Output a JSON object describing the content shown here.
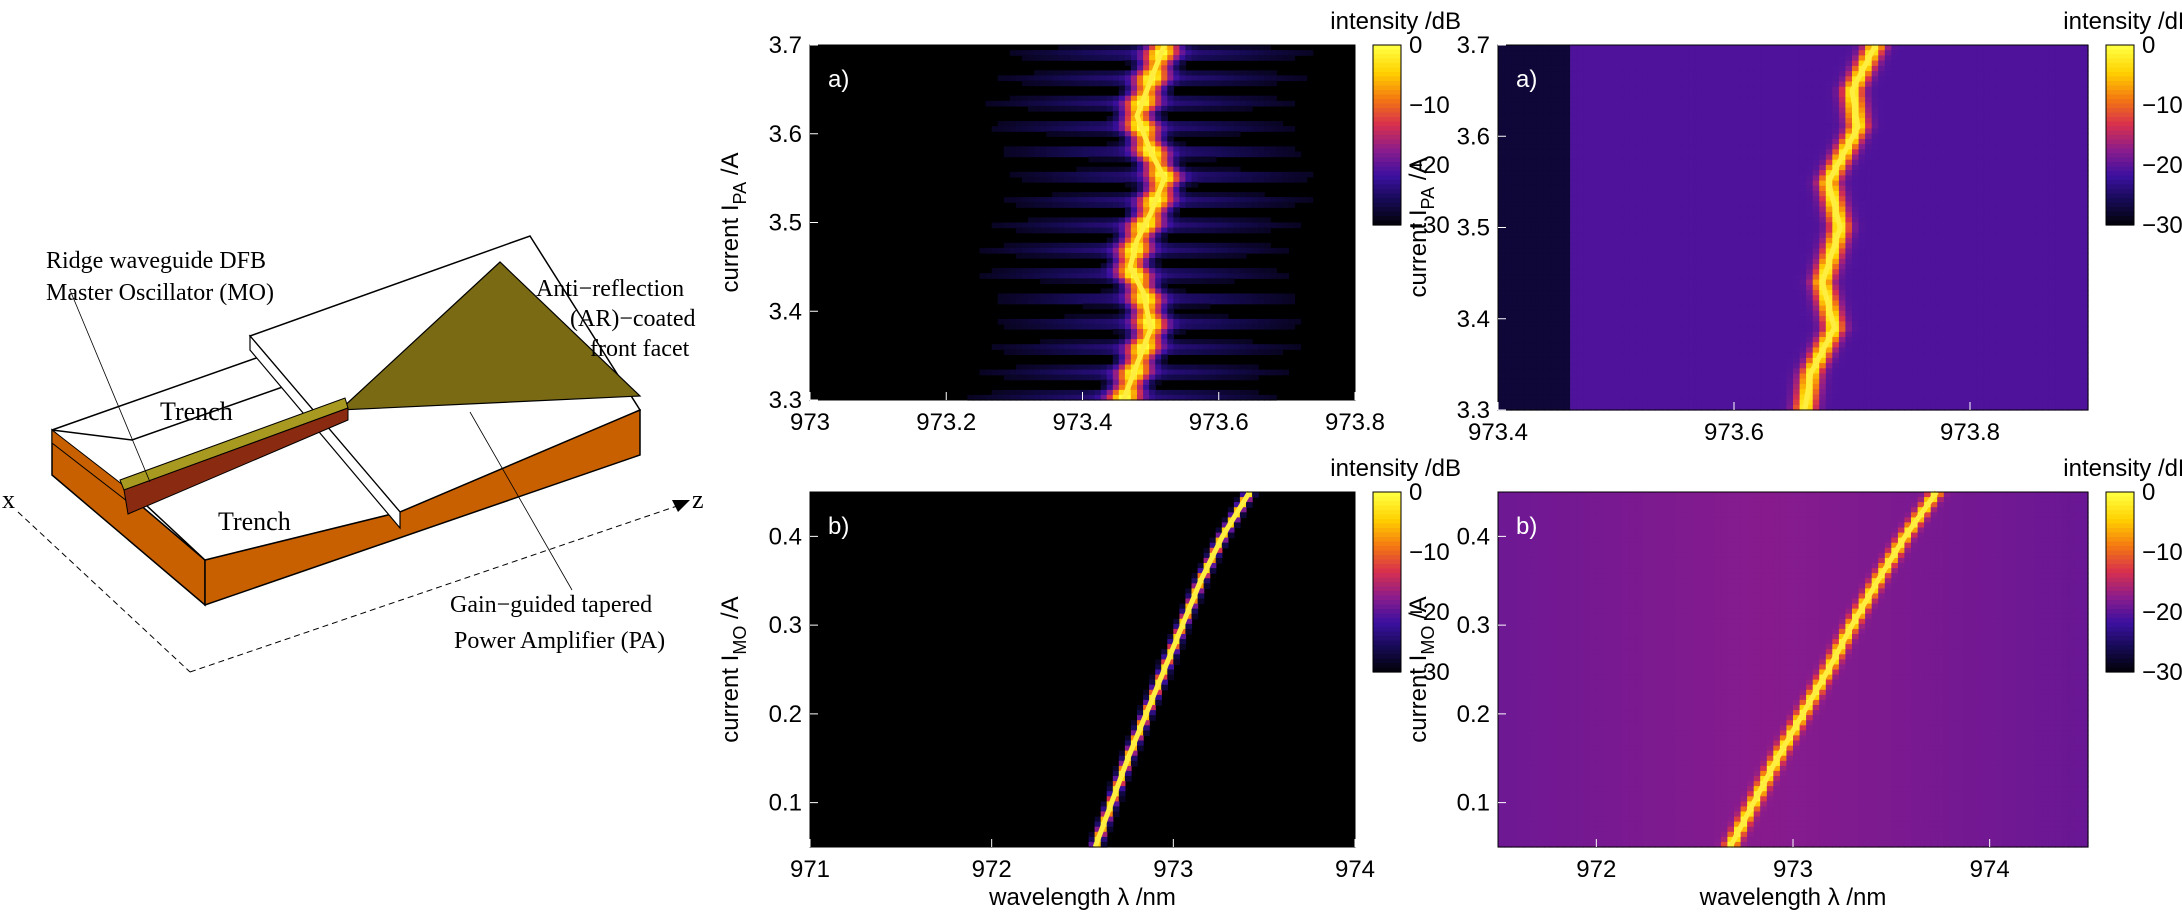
{
  "diagram": {
    "label_mo_line1": "Ridge waveguide DFB",
    "label_mo_line2": "Master Oscillator (MO)",
    "label_ar_line1": "Anti−reflection",
    "label_ar_line2": "(AR)−coated",
    "label_ar_line3": "front facet",
    "label_trench_top": "Trench",
    "label_trench_bottom": "Trench",
    "label_pa_line1": "Gain−guided tapered",
    "label_pa_line2": "Power Amplifier (PA)",
    "axis_x": "x",
    "axis_z": "z"
  },
  "colors": {
    "copper": "#c86000",
    "olive": "#7a6a14",
    "ridge_dark": "#8a2a10"
  },
  "colormap": {
    "stops": [
      "#000000",
      "#140a50",
      "#3c10a0",
      "#8c1c8c",
      "#d8304c",
      "#f47a10",
      "#ffd000",
      "#ffff40"
    ]
  },
  "chart_data": [
    {
      "id": "tl",
      "type": "heatmap",
      "panel_label": "a)",
      "ylabel_main": "current I",
      "ylabel_sub": "PA",
      "ylabel_unit": " /A",
      "xlabel": "",
      "xlim": [
        973.0,
        973.8
      ],
      "ylim": [
        3.3,
        3.7
      ],
      "xticks": [
        973,
        973.2,
        973.4,
        973.6,
        973.8
      ],
      "xticklabels": [
        "973",
        "973.2",
        "973.4",
        "973.6",
        "973.8"
      ],
      "yticks": [
        3.3,
        3.4,
        3.5,
        3.6,
        3.7
      ],
      "yticklabels": [
        "3.3",
        "3.4",
        "3.5",
        "3.6",
        "3.7"
      ],
      "colorbar": {
        "title": "intensity /dB",
        "range": [
          -30,
          0
        ],
        "ticks": [
          0,
          -10,
          -20,
          -30
        ],
        "ticklabels": [
          "0",
          "−10",
          "−20",
          "−30"
        ]
      },
      "ridge": {
        "x": [
          973.46,
          973.48,
          973.5,
          973.49,
          973.47,
          973.48,
          973.5,
          973.52,
          973.5,
          973.48,
          973.5,
          973.52
        ],
        "y": [
          3.3,
          3.34,
          3.38,
          3.42,
          3.45,
          3.48,
          3.51,
          3.55,
          3.58,
          3.62,
          3.66,
          3.7
        ]
      }
    },
    {
      "id": "tr",
      "type": "heatmap",
      "panel_label": "a)",
      "ylabel_main": "current I",
      "ylabel_sub": "PA",
      "ylabel_unit": " /A",
      "xlabel": "",
      "xlim": [
        973.4,
        973.9
      ],
      "ylim": [
        3.3,
        3.7
      ],
      "xticks": [
        973.4,
        973.6,
        973.8
      ],
      "xticklabels": [
        "973.4",
        "973.6",
        "973.8"
      ],
      "yticks": [
        3.3,
        3.4,
        3.5,
        3.6,
        3.7
      ],
      "yticklabels": [
        "3.3",
        "3.4",
        "3.5",
        "3.6",
        "3.7"
      ],
      "colorbar": {
        "title": "intensity /dB",
        "range": [
          -30,
          0
        ],
        "ticks": [
          0,
          -10,
          -20,
          -30
        ],
        "ticklabels": [
          "0",
          "−10",
          "−20",
          "−30"
        ]
      },
      "ridge": {
        "x": [
          973.66,
          973.665,
          973.685,
          973.675,
          973.69,
          973.68,
          973.705,
          973.7,
          973.72
        ],
        "y": [
          3.3,
          3.34,
          3.39,
          3.44,
          3.5,
          3.55,
          3.61,
          3.65,
          3.7
        ]
      }
    },
    {
      "id": "bl",
      "type": "heatmap",
      "panel_label": "b)",
      "ylabel_main": "current I",
      "ylabel_sub": "MO",
      "ylabel_unit": " /A",
      "xlabel": "wavelength λ /nm",
      "xlim": [
        971,
        974
      ],
      "ylim": [
        0.05,
        0.45
      ],
      "xticks": [
        971,
        972,
        973,
        974
      ],
      "xticklabels": [
        "971",
        "972",
        "973",
        "974"
      ],
      "yticks": [
        0.1,
        0.2,
        0.3,
        0.4
      ],
      "yticklabels": [
        "0.1",
        "0.2",
        "0.3",
        "0.4"
      ],
      "colorbar": {
        "title": "intensity /dB",
        "range": [
          -30,
          0
        ],
        "ticks": [
          0,
          -10,
          -20,
          -30
        ],
        "ticklabels": [
          "0",
          "−10",
          "−20",
          "−30"
        ]
      },
      "ridge": {
        "x": [
          972.57,
          972.66,
          972.75,
          972.85,
          972.95,
          973.05,
          973.15,
          973.27,
          973.42
        ],
        "y": [
          0.05,
          0.1,
          0.15,
          0.2,
          0.25,
          0.3,
          0.35,
          0.4,
          0.45
        ]
      }
    },
    {
      "id": "br",
      "type": "heatmap",
      "panel_label": "b)",
      "ylabel_main": "current I",
      "ylabel_sub": "MO",
      "ylabel_unit": " /A",
      "xlabel": "wavelength λ /nm",
      "xlim": [
        971.5,
        974.5
      ],
      "ylim": [
        0.05,
        0.45
      ],
      "xticks": [
        972,
        973,
        974
      ],
      "xticklabels": [
        "972",
        "973",
        "974"
      ],
      "yticks": [
        0.1,
        0.2,
        0.3,
        0.4
      ],
      "yticklabels": [
        "0.1",
        "0.2",
        "0.3",
        "0.4"
      ],
      "colorbar": {
        "title": "intensity /dB",
        "range": [
          -30,
          0
        ],
        "ticks": [
          0,
          -10,
          -20,
          -30
        ],
        "ticklabels": [
          "0",
          "−10",
          "−20",
          "−30"
        ]
      },
      "ridge": {
        "x": [
          972.68,
          972.8,
          972.92,
          973.05,
          973.18,
          973.3,
          973.43,
          973.57,
          973.73
        ],
        "y": [
          0.05,
          0.1,
          0.15,
          0.2,
          0.25,
          0.3,
          0.35,
          0.4,
          0.45
        ]
      }
    }
  ]
}
